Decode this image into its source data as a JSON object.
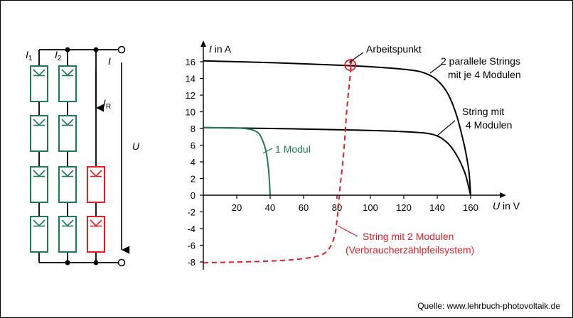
{
  "circuit": {
    "label_i1": "I",
    "label_i1_sub": "1",
    "label_i2": "I",
    "label_i2_sub": "2",
    "label_i": "I",
    "label_ir": "I",
    "label_ir_sub": "R",
    "label_u": "U",
    "colors": {
      "module_green": "#1e7a52",
      "module_red": "#e31e24",
      "wire": "#000000"
    }
  },
  "annotations": {
    "arbeitspunkt": "Arbeitspunkt",
    "two_strings_line1": "2 parallele  Strings",
    "two_strings_line2": "mit je 4 Modulen",
    "string4_line1": "String mit",
    "string4_line2": "4 Modulen",
    "one_module": "1 Modul",
    "string2_line1": "String mit 2 Modulen",
    "string2_line2": "(Verbraucherzählpfeilsystem)"
  },
  "source": "Quelle: www.lehrbuch-photovoltaik.de",
  "chart_data": {
    "type": "line",
    "xlabel": "U in V",
    "xlabel_var": "U",
    "xlabel_unit": " in V",
    "ylabel": "I in A",
    "ylabel_var": "I",
    "ylabel_unit": " in A",
    "xlim": [
      0,
      170
    ],
    "ylim": [
      -8,
      17
    ],
    "x_ticks": [
      20,
      40,
      60,
      80,
      100,
      120,
      140,
      160
    ],
    "y_ticks": [
      -8,
      -6,
      -4,
      -2,
      0,
      2,
      4,
      6,
      8,
      10,
      12,
      14,
      16
    ],
    "series": [
      {
        "color": "#000000",
        "dashed": false,
        "points": [
          [
            0,
            16.1
          ],
          [
            40,
            15.9
          ],
          [
            80,
            15.6
          ],
          [
            100,
            15.4
          ],
          [
            120,
            15.1
          ],
          [
            130,
            14.8
          ],
          [
            138,
            14.1
          ],
          [
            144,
            12.9
          ],
          [
            148,
            11.5
          ],
          [
            152,
            9.3
          ],
          [
            155,
            7.0
          ],
          [
            157,
            5.2
          ],
          [
            159,
            2.8
          ],
          [
            160,
            0
          ]
        ]
      },
      {
        "color": "#000000",
        "dashed": false,
        "points": [
          [
            0,
            8.1
          ],
          [
            40,
            8.0
          ],
          [
            80,
            7.85
          ],
          [
            110,
            7.7
          ],
          [
            130,
            7.5
          ],
          [
            137,
            7.3
          ],
          [
            142,
            6.9
          ],
          [
            147,
            6.1
          ],
          [
            151,
            5.0
          ],
          [
            154,
            3.9
          ],
          [
            157,
            2.4
          ],
          [
            160,
            0
          ]
        ]
      },
      {
        "color": "#1e7a52",
        "dashed": false,
        "points": [
          [
            0,
            8.1
          ],
          [
            20,
            8.05
          ],
          [
            28,
            7.9
          ],
          [
            32,
            7.6
          ],
          [
            34,
            7.2
          ],
          [
            36,
            6.3
          ],
          [
            37.5,
            5.3
          ],
          [
            38.5,
            4.0
          ],
          [
            39.3,
            2.5
          ],
          [
            40,
            0
          ]
        ]
      },
      {
        "color": "#e31e24",
        "dashed": true,
        "points": [
          [
            0,
            -8.1
          ],
          [
            40,
            -7.9
          ],
          [
            60,
            -7.6
          ],
          [
            70,
            -7.2
          ],
          [
            74,
            -6.7
          ],
          [
            77,
            -5.8
          ],
          [
            79,
            -4.5
          ],
          [
            80,
            -3.0
          ],
          [
            81,
            -1.0
          ],
          [
            82,
            1.2
          ],
          [
            84,
            5.0
          ],
          [
            86,
            10.5
          ],
          [
            88,
            14.5
          ],
          [
            89,
            16.7
          ]
        ]
      }
    ],
    "operating_point": {
      "x": 88,
      "y": 15.6
    }
  }
}
